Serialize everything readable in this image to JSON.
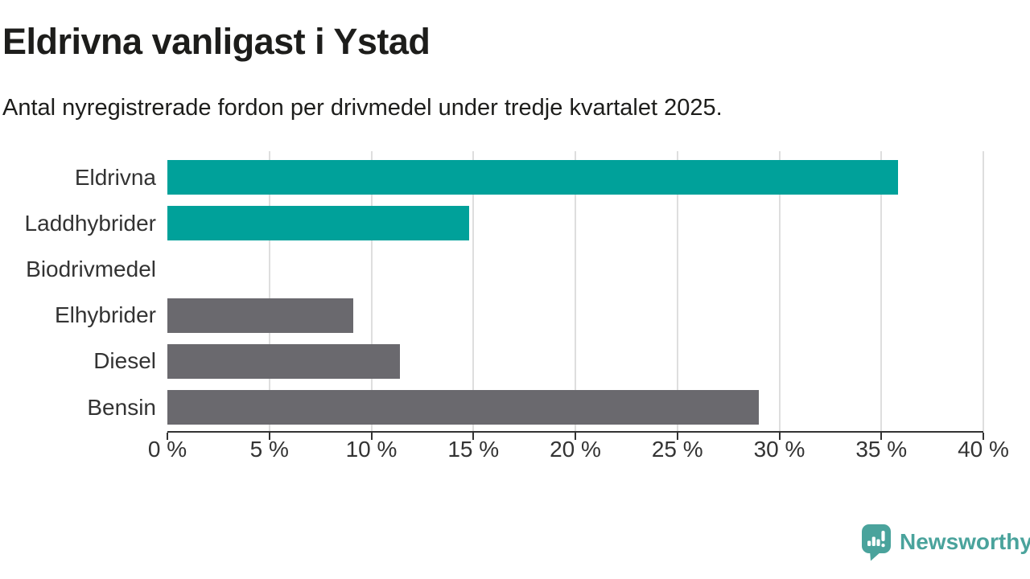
{
  "chart_data": {
    "type": "bar",
    "orientation": "horizontal",
    "title": "Eldrivna vanligast i Ystad",
    "subtitle": "Antal nyregistrerade fordon per drivmedel under tredje kvartalet 2025.",
    "categories": [
      "Eldrivna",
      "Laddhybrider",
      "Biodrivmedel",
      "Elhybrider",
      "Diesel",
      "Bensin"
    ],
    "values": [
      35.8,
      14.8,
      0,
      9.1,
      11.4,
      29.0
    ],
    "unit": "%",
    "xlim": [
      0,
      40
    ],
    "x_ticks": [
      0,
      5,
      10,
      15,
      20,
      25,
      30,
      35,
      40
    ],
    "x_tick_labels": [
      "0 %",
      "5 %",
      "10 %",
      "15 %",
      "20 %",
      "25 %",
      "30 %",
      "35 %",
      "40 %"
    ],
    "grid": "vertical-only",
    "legend": "none",
    "bar_colors": [
      "#00a19a",
      "#00a19a",
      "#6a696e",
      "#6a696e",
      "#6a696e",
      "#6a696e"
    ],
    "highlight_color": "#00a19a",
    "default_color": "#6a696e"
  },
  "colors": {
    "title_text": "#1d1d1b",
    "axis_text": "#333333",
    "axis_line": "#333333",
    "gridline": "#dedede",
    "background": "#ffffff",
    "brand_teal": "#4aa39c"
  },
  "footer": {
    "brand_label": "Newsworthy",
    "brand_logo_icon": "speech-bubble-bar-chart-exclamation"
  }
}
